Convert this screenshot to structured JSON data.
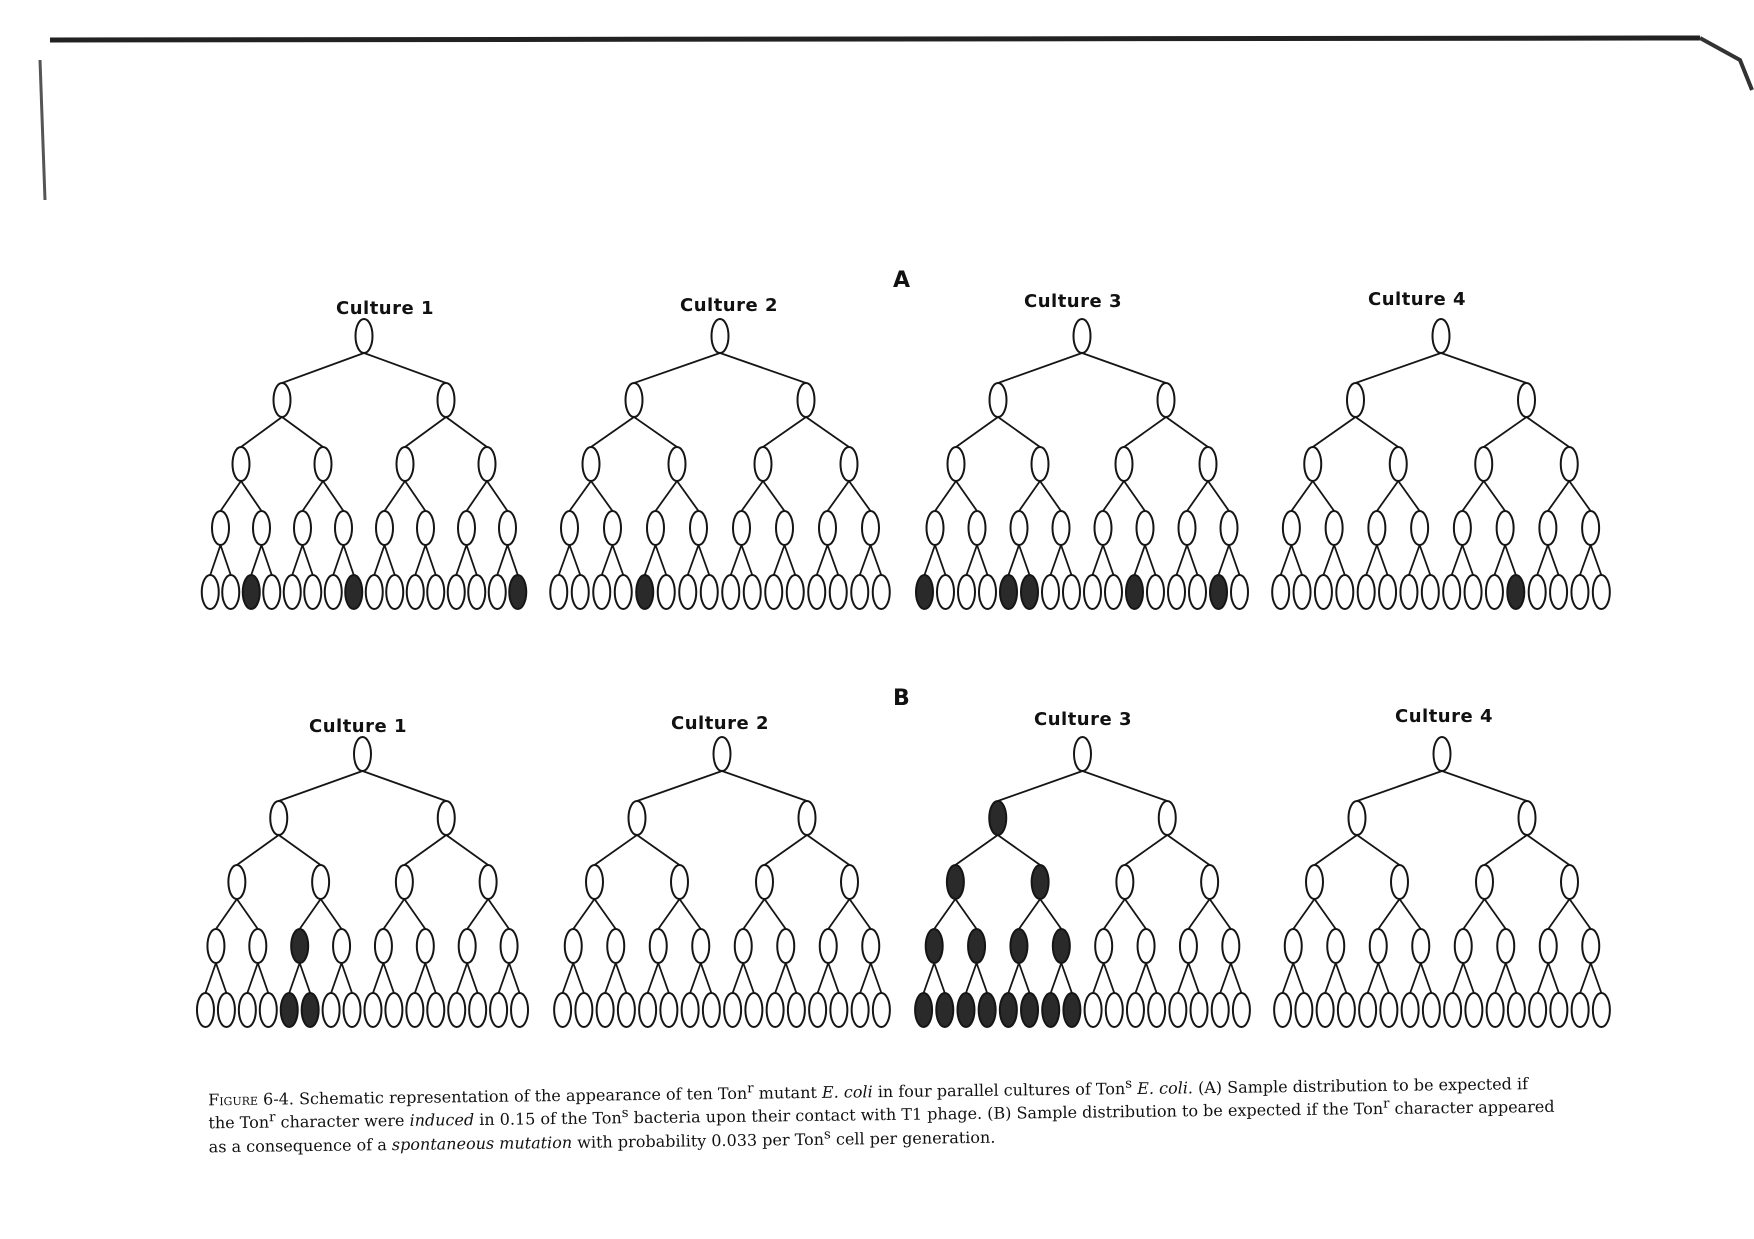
{
  "figure": {
    "panels": [
      {
        "label": "A",
        "cultures": [
          {
            "title": "Culture 1",
            "mutants": [
              [
                4,
                2
              ],
              [
                4,
                7
              ],
              [
                4,
                15
              ]
            ]
          },
          {
            "title": "Culture 2",
            "mutants": [
              [
                4,
                4
              ]
            ]
          },
          {
            "title": "Culture 3",
            "mutants": [
              [
                4,
                0
              ],
              [
                4,
                4
              ],
              [
                4,
                5
              ],
              [
                4,
                10
              ],
              [
                4,
                14
              ]
            ]
          },
          {
            "title": "Culture 4",
            "mutants": [
              [
                4,
                11
              ]
            ]
          }
        ]
      },
      {
        "label": "B",
        "cultures": [
          {
            "title": "Culture 1",
            "mutants": [
              [
                3,
                2
              ],
              [
                4,
                4
              ],
              [
                4,
                5
              ]
            ]
          },
          {
            "title": "Culture 2",
            "mutants": []
          },
          {
            "title": "Culture 3",
            "mutants": [
              [
                1,
                0
              ],
              [
                2,
                0
              ],
              [
                2,
                1
              ],
              [
                3,
                0
              ],
              [
                3,
                1
              ],
              [
                3,
                2
              ],
              [
                3,
                3
              ],
              [
                4,
                0
              ],
              [
                4,
                1
              ],
              [
                4,
                2
              ],
              [
                4,
                3
              ],
              [
                4,
                4
              ],
              [
                4,
                5
              ],
              [
                4,
                6
              ],
              [
                4,
                7
              ]
            ]
          },
          {
            "title": "Culture 4",
            "mutants": []
          }
        ]
      }
    ],
    "colors": {
      "ink": "#151515",
      "mutant_fill": "#2a2a2a",
      "cell_fill": "#ffffff"
    }
  },
  "caption": {
    "lead": "Figure 6-4.",
    "p1": " Schematic representation of the appearance of ten Ton",
    "r1": "r",
    "p2": " mutant ",
    "species1": "E. coli",
    "p3": " in four parallel cultures of Ton",
    "s1": "s",
    "p4": " ",
    "species2": "E. coli.",
    "p5": " (A) Sample distribution to be expected if the Ton",
    "r2": "r",
    "p6": " character were ",
    "induced": "induced",
    "p7": " in 0.15 of the Ton",
    "s2": "s",
    "p8": " bacteria upon their contact with T1 phage. (B) Sample distribution to be expected if the Ton",
    "r3": "r",
    "p9": " character appeared as a consequence of a ",
    "spontaneous": "spontaneous mutation",
    "p10": " with probability 0.033 per Ton",
    "s3": "s",
    "p11": " cell per generation."
  }
}
